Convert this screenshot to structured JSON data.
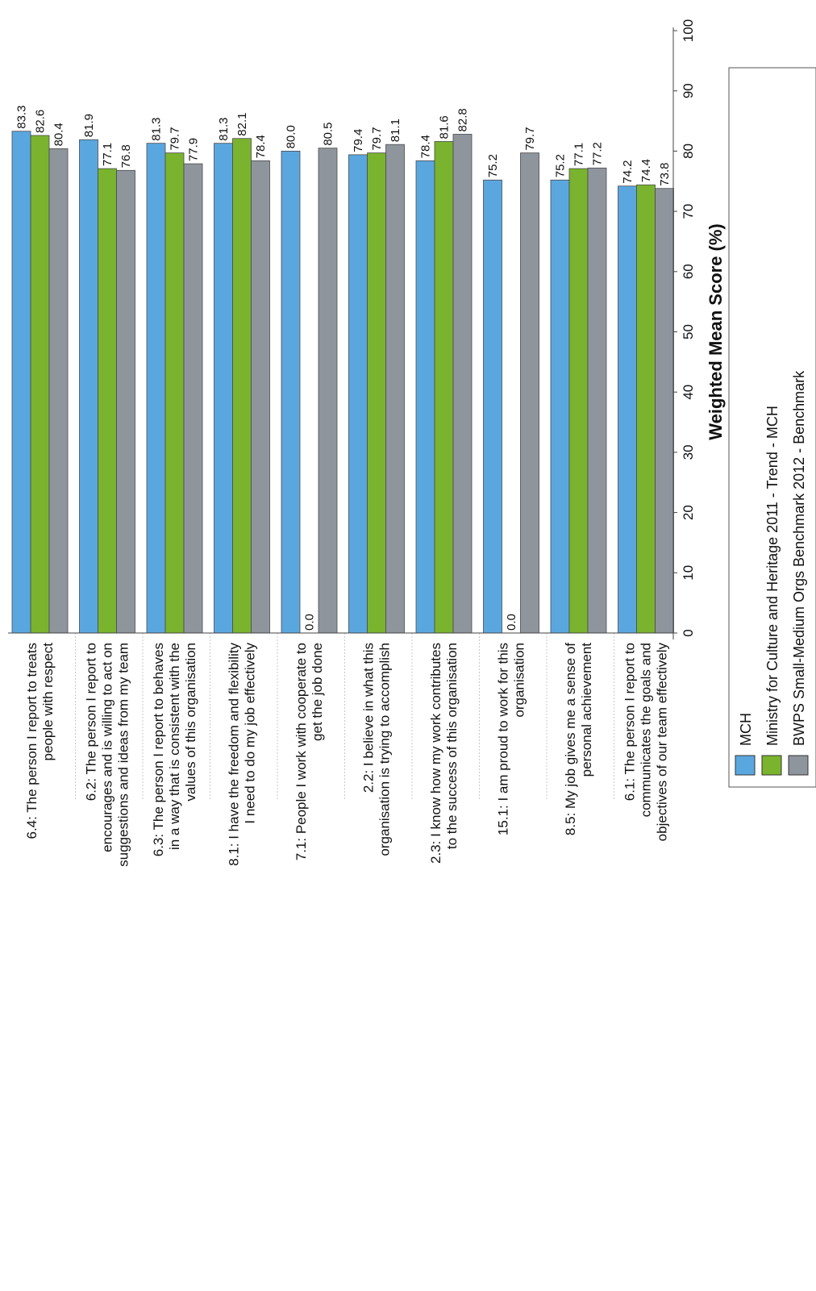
{
  "chart_data": {
    "type": "bar",
    "orientation": "horizontal",
    "title": "",
    "xlabel": "Weighted Mean Score (%)",
    "ylabel": "",
    "xlim": [
      0,
      100
    ],
    "ticks": [
      "0",
      "10",
      "20",
      "30",
      "40",
      "50",
      "60",
      "70",
      "80",
      "90",
      "100"
    ],
    "grid": false,
    "legend_position": "bottom-right",
    "categories": [
      [
        "6.4: The person I report to treats",
        "people with respect"
      ],
      [
        "6.2: The person I report to",
        "encourages and is willing to act on",
        "suggestions and ideas from my team"
      ],
      [
        "6.3: The person I report to behaves",
        "in a way that is consistent with the",
        "values of this organisation"
      ],
      [
        "8.1: I have the freedom and flexibility",
        "I need to do my job effectively"
      ],
      [
        "7.1: People I work with cooperate to",
        "get the job done"
      ],
      [
        "2.2: I believe in what this",
        "organisation is trying to accomplish"
      ],
      [
        "2.3: I know how my work contributes",
        "to the success of this organisation"
      ],
      [
        "15.1: I am proud to work for this",
        "organisation"
      ],
      [
        "8.5: My job gives me a sense of",
        "personal achievement"
      ],
      [
        "6.1: The person I report to",
        "communicates the goals and",
        "objectives of our team effectively"
      ]
    ],
    "series": [
      {
        "name": "MCH",
        "color": "#5aa7e0",
        "values": [
          83.3,
          81.9,
          81.3,
          81.3,
          80.0,
          79.4,
          78.4,
          75.2,
          75.2,
          74.2
        ],
        "labels": [
          "83.3",
          "81.9",
          "81.3",
          "81.3",
          "80.0",
          "79.4",
          "78.4",
          "75.2",
          "75.2",
          "74.2"
        ]
      },
      {
        "name": "Ministry for Culture and Heritage 2011 - Trend - MCH",
        "color": "#7ab32e",
        "values": [
          82.6,
          77.1,
          79.7,
          82.1,
          0.0,
          79.7,
          81.6,
          0.0,
          77.1,
          74.4
        ],
        "labels": [
          "82.6",
          "77.1",
          "79.7",
          "82.1",
          "0.0",
          "79.7",
          "81.6",
          "0.0",
          "77.1",
          "74.4"
        ]
      },
      {
        "name": "BWPS Small-Medium Orgs Benchmark 2012 - Benchmark",
        "color": "#8e959d",
        "values": [
          80.4,
          76.8,
          77.9,
          78.4,
          80.5,
          81.1,
          82.8,
          79.7,
          77.2,
          73.8
        ],
        "labels": [
          "80.4",
          "76.8",
          "77.9",
          "78.4",
          "80.5",
          "81.1",
          "82.8",
          "79.7",
          "77.2",
          "73.8"
        ]
      }
    ]
  }
}
